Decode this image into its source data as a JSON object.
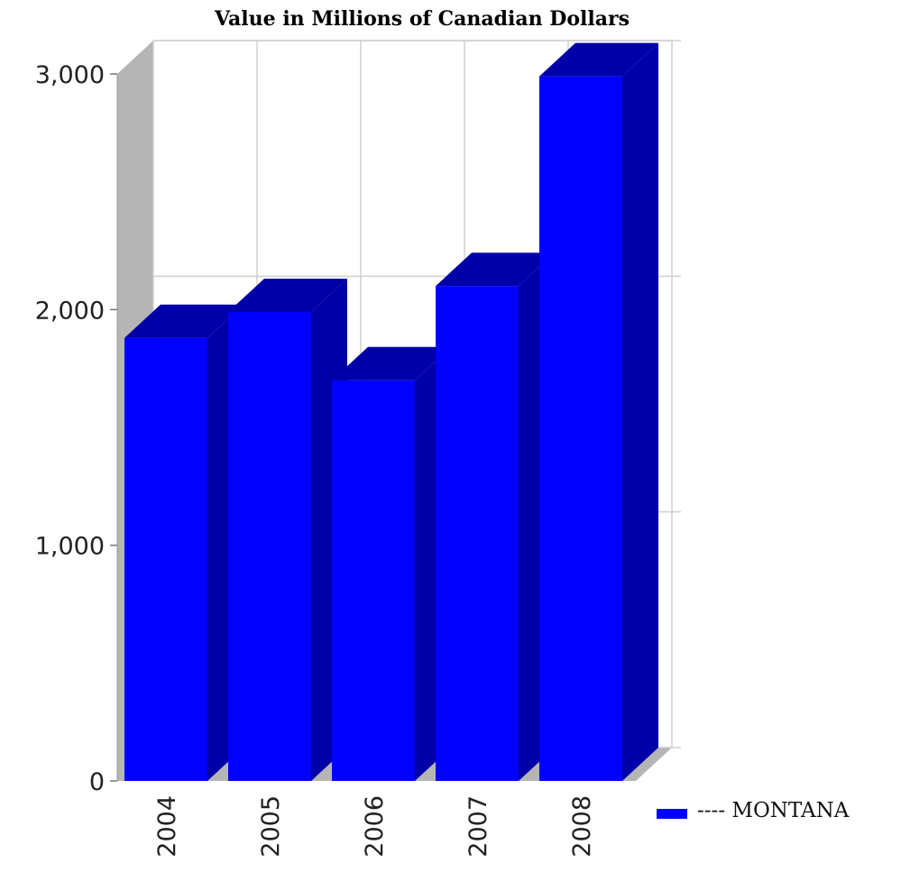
{
  "chart_data": {
    "type": "bar",
    "title": "Value in Millions of Canadian Dollars",
    "categories": [
      "2004",
      "2005",
      "2006",
      "2007",
      "2008"
    ],
    "series": [
      {
        "name": "---- MONTANA",
        "values": [
          1880,
          1990,
          1700,
          2100,
          2990
        ],
        "color": "#0000ff",
        "shade_color": "#0000a8"
      }
    ],
    "yticks": [
      "0",
      "1,000",
      "2,000",
      "3,000"
    ],
    "ylim": [
      0,
      3000
    ],
    "grid": true,
    "legend_position": "right",
    "wall_color": "#b5b5b5",
    "grid_color": "#d0d0d0"
  }
}
